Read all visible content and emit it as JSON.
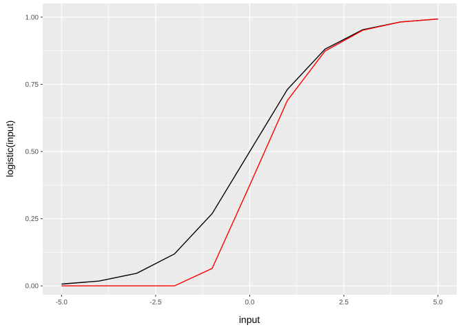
{
  "chart_data": {
    "type": "line",
    "xlabel": "input",
    "ylabel": "logistic(input)",
    "xlim": [
      -5.5,
      5.5
    ],
    "ylim": [
      -0.033,
      1.051
    ],
    "xticks": [
      -5,
      -2.5,
      0,
      2.5,
      5
    ],
    "xtick_labels": [
      "-5.0",
      "-2.5",
      "0.0",
      "2.5",
      "5.0"
    ],
    "yticks": [
      0,
      0.25,
      0.5,
      0.75,
      1
    ],
    "ytick_labels": [
      "0.00",
      "0.25",
      "0.50",
      "0.75",
      "1.00"
    ],
    "grid": true,
    "x": [
      -5,
      -4,
      -3,
      -2,
      -1,
      0,
      1,
      2,
      3,
      4,
      5
    ],
    "series": [
      {
        "color": "#000000",
        "values": [
          0.0067,
          0.018,
          0.047,
          0.119,
          0.269,
          0.5,
          0.731,
          0.881,
          0.953,
          0.982,
          0.993
        ]
      },
      {
        "color": "#ff0000",
        "values": [
          0,
          0,
          0,
          0,
          0.065,
          0.375,
          0.69,
          0.874,
          0.951,
          0.982,
          0.993
        ]
      }
    ]
  }
}
